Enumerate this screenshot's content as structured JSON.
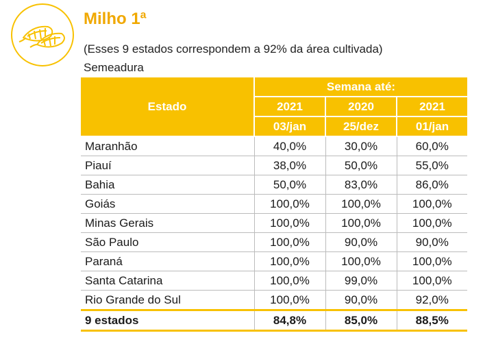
{
  "header": {
    "title": "Milho 1ª",
    "subtitle": "(Esses 9 estados correspondem a 92% da área cultivada)",
    "section": "Semeadura",
    "logo_icon": "corn-icon",
    "accent_color": "#f8c100"
  },
  "table": {
    "col_estado": "Estado",
    "group_label": "Semana até:",
    "years": [
      "2021",
      "2020",
      "2021"
    ],
    "dates": [
      "03/jan",
      "25/dez",
      "01/jan"
    ],
    "rows": [
      {
        "estado": "Maranhão",
        "v": [
          "40,0%",
          "30,0%",
          "60,0%"
        ]
      },
      {
        "estado": "Piauí",
        "v": [
          "38,0%",
          "50,0%",
          "55,0%"
        ]
      },
      {
        "estado": "Bahia",
        "v": [
          "50,0%",
          "83,0%",
          "86,0%"
        ]
      },
      {
        "estado": "Goiás",
        "v": [
          "100,0%",
          "100,0%",
          "100,0%"
        ]
      },
      {
        "estado": "Minas Gerais",
        "v": [
          "100,0%",
          "100,0%",
          "100,0%"
        ]
      },
      {
        "estado": "São Paulo",
        "v": [
          "100,0%",
          "90,0%",
          "90,0%"
        ]
      },
      {
        "estado": "Paraná",
        "v": [
          "100,0%",
          "100,0%",
          "100,0%"
        ]
      },
      {
        "estado": "Santa Catarina",
        "v": [
          "100,0%",
          "99,0%",
          "100,0%"
        ]
      },
      {
        "estado": "Rio Grande do Sul",
        "v": [
          "100,0%",
          "90,0%",
          "92,0%"
        ]
      }
    ],
    "total": {
      "estado": "9 estados",
      "v": [
        "84,8%",
        "85,0%",
        "88,5%"
      ]
    }
  }
}
